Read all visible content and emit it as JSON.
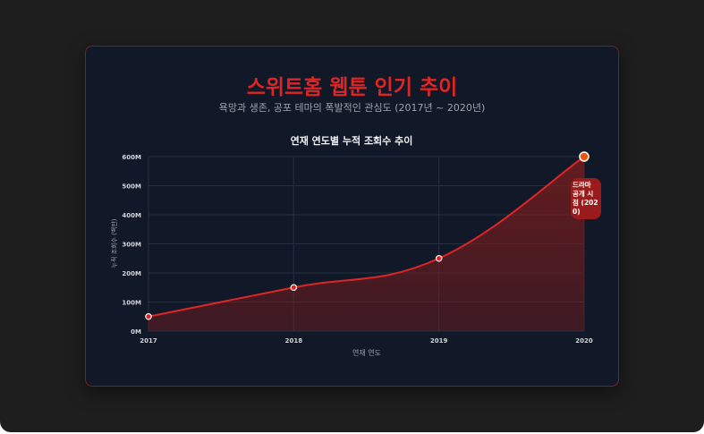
{
  "chart_data": {
    "type": "line",
    "title": "스위트홈 웹툰 인기 추이",
    "subtitle": "욕망과 생존, 공포 테마의 폭발적인 관심도 (2017년 ~ 2020년)",
    "chart_title": "연재 연도별 누적 조회수 추이",
    "x_label": "연재 연도",
    "y_label": "누적 조회수 (백만)",
    "categories": [
      "2017",
      "2018",
      "2019",
      "2020"
    ],
    "series": [
      {
        "name": "누적 조회수",
        "color": "#dc2626",
        "values": [
          50,
          150,
          250,
          600
        ]
      }
    ],
    "ylim": [
      0,
      600
    ],
    "yticks": [
      {
        "value": 0,
        "label": "0M"
      },
      {
        "value": 100,
        "label": "100M"
      },
      {
        "value": 200,
        "label": "200M"
      },
      {
        "value": 300,
        "label": "300M"
      },
      {
        "value": 400,
        "label": "400M"
      },
      {
        "value": 500,
        "label": "500M"
      },
      {
        "value": 600,
        "label": "600M"
      }
    ],
    "grid": true,
    "annotation": "드라마 공개 시점 (2020)"
  }
}
